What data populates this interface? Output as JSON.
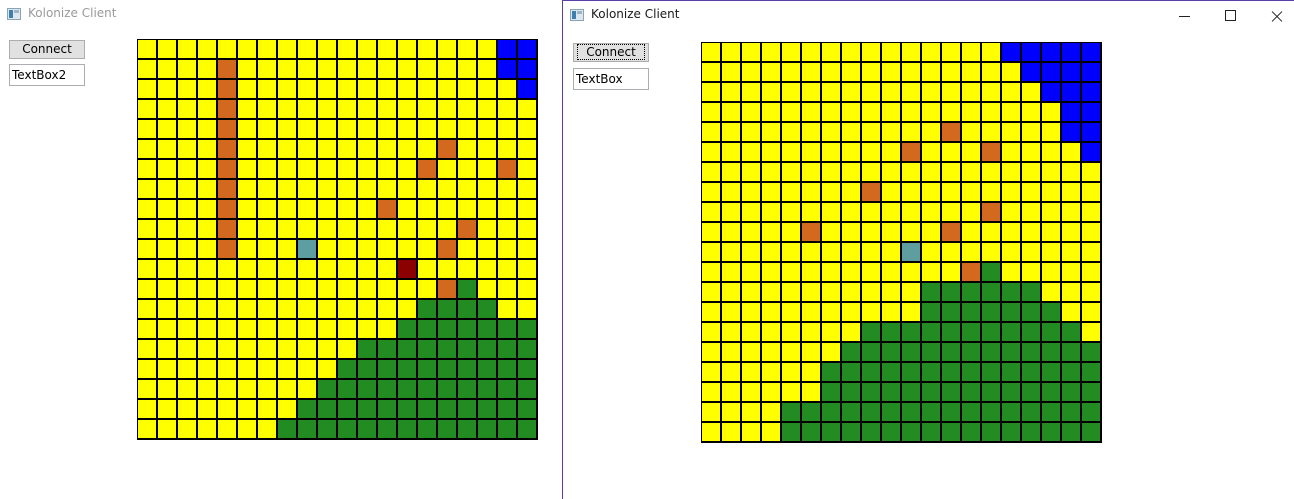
{
  "colors": {
    "Y": "#ffff00",
    "B": "#0000ff",
    "G": "#228b22",
    "O": "#d2691e",
    "R": "#8b0000",
    "T": "#5f9ea0"
  },
  "windows": [
    {
      "title": "Kolonize Client",
      "connect_label": "Connect",
      "textbox_value": "TextBox2",
      "grid": [
        "YYYYYYYYYYYYYYYYYYBB",
        "YYYYOYYYYYYYYYYYYYBB",
        "YYYYOYYYYYYYYYYYYYYB",
        "YYYYOYYYYYYYYYYYYYYY",
        "YYYYOYYYYYYYYYYYYYYY",
        "YYYYOYYYYYYYYYYOYYYY",
        "YYYYOYYYYYYYYYOYYYOY",
        "YYYYOYYYYYYYYYYYYYYY",
        "YYYYOYYYYYYYOYYYYYYY",
        "YYYYOYYYYYYYYYYYOYYY",
        "YYYYOYYYTYYYYYYOYYYY",
        "YYYYYYYYYYYYYRYYYYYY",
        "YYYYYYYYYYYYYYYOGYYY",
        "YYYYYYYYYYYYYYGGGGYY",
        "YYYYYYYYYYYYYGGGGGGG",
        "YYYYYYYYYYYGGGGGGGGG",
        "YYYYYYYYYYGGGGGGGGGG",
        "YYYYYYYYYGGGGGGGGGGG",
        "YYYYYYYYGGGGGGGGGGGG",
        "YYYYYYYGGGGGGGGGGGGG"
      ]
    },
    {
      "title": "Kolonize Client",
      "connect_label": "Connect",
      "textbox_value": "TextBox",
      "controls": {
        "minimize": "minimize",
        "maximize": "maximize",
        "close": "close"
      },
      "grid": [
        "YYYYYYYYYYYYYYYBBBBB",
        "YYYYYYYYYYYYYYYYBBBB",
        "YYYYYYYYYYYYYYYYYBBB",
        "YYYYYYYYYYYYYYYYYYBB",
        "YYYYYYYYYYYYOYYYYYBB",
        "YYYYYYYYYYOYYYOYYYYB",
        "YYYYYYYYYYYYYYYYYYYY",
        "YYYYYYYYOYYYYYYYYYYY",
        "YYYYYYYYYYYYYYOYYYYY",
        "YYYYYOYYYYYYOYYYYYYY",
        "YYYYYYYYYYTYYYYYYYYY",
        "YYYYYYYYYYYYYOGYYYYY",
        "YYYYYYYYYYYGGGGGGYYY",
        "YYYYYYYYYYYGGGGGGGYY",
        "YYYYYYYYGGGGGGGGGGGY",
        "YYYYYYYGGGGGGGGGGGGG",
        "YYYYYYGGGGGGGGGGGGGG",
        "YYYYYYGGGGGGGGGGGGGG",
        "YYYYGGGGGGGGGGGGGGGG",
        "YYYYGGGGGGGGGGGGGGGG"
      ]
    }
  ]
}
